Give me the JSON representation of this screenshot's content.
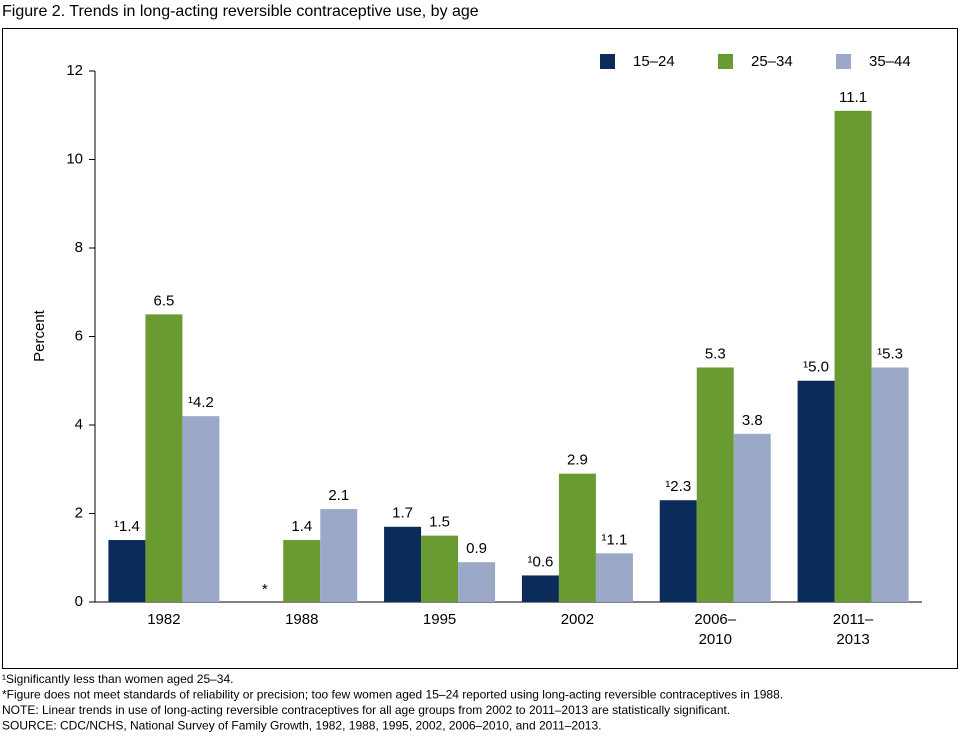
{
  "chart_data": {
    "type": "bar",
    "title": "Figure 2. Trends in long-acting reversible contraceptive use, by age",
    "y_label": "Percent",
    "categories": [
      "1982",
      "1988",
      "1995",
      "2002",
      "2006–\n2010",
      "2011–\n2013"
    ],
    "series": [
      {
        "name": "15–24",
        "color": "#0b2c5a",
        "values": [
          1.4,
          null,
          1.7,
          0.6,
          2.3,
          5.0
        ],
        "value_labels": [
          "¹1.4",
          "*",
          "1.7",
          "¹0.6",
          "¹2.3",
          "¹5.0"
        ]
      },
      {
        "name": "25–34",
        "color": "#6a9a32",
        "values": [
          6.5,
          1.4,
          1.5,
          2.9,
          5.3,
          11.1
        ]
      },
      {
        "name": "35–44",
        "color": "#9ba8c8",
        "values": [
          4.2,
          2.1,
          0.9,
          1.1,
          3.8,
          5.3
        ],
        "value_labels": [
          "¹4.2",
          "2.1",
          "0.9",
          "¹1.1",
          "3.8",
          "¹5.3"
        ]
      }
    ],
    "ylim": [
      0,
      12
    ],
    "yticks": [
      0,
      2,
      4,
      6,
      8,
      10,
      12
    ],
    "grid": false,
    "legend": "top-right",
    "footnotes": [
      "¹Significantly less than women aged 25–34.",
      "*Figure does not meet standards of reliability or precision; too few women aged 15–24 reported using long-acting reversible contraceptives in 1988.",
      "NOTE: Linear trends in use of long-acting reversible contraceptives for all age groups from 2002 to 2011–2013 are statistically significant.",
      "SOURCE: CDC/NCHS, National Survey of Family Growth, 1982, 1988, 1995, 2002, 2006–2010, and 2011–2013."
    ]
  }
}
